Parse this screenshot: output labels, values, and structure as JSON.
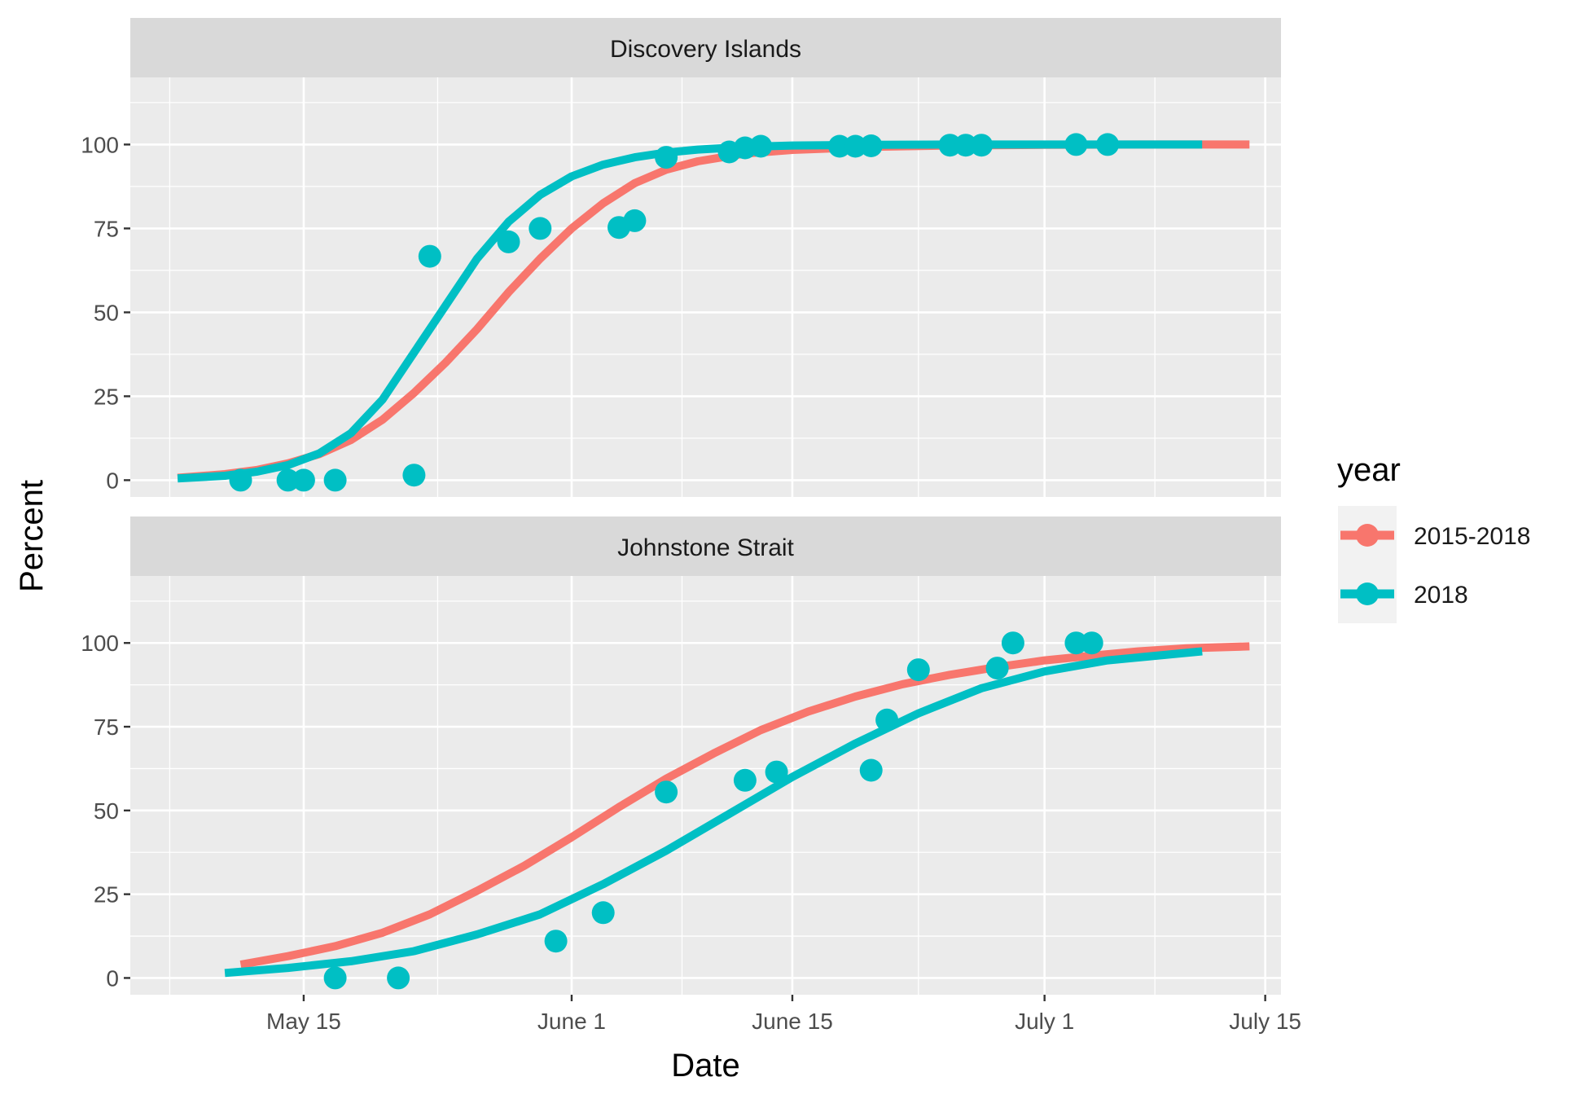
{
  "chart_data": {
    "type": "line",
    "x_unit": "date",
    "y_label": "Percent",
    "x_label": "Date",
    "x_range": [
      "2018-05-04",
      "2018-07-16"
    ],
    "y_range": [
      -5,
      120
    ],
    "y_ticks": [
      0,
      25,
      50,
      75,
      100
    ],
    "y_tick_labels": [
      "0",
      "25",
      "50",
      "75",
      "100"
    ],
    "x_ticks": [
      "2018-05-15",
      "2018-06-01",
      "2018-06-15",
      "2018-07-01",
      "2018-07-15"
    ],
    "x_tick_labels": [
      "May 15",
      "June 1",
      "June 15",
      "July 1",
      "July 15"
    ],
    "grid": true,
    "legend": {
      "title": "year",
      "position": "right",
      "entries": [
        {
          "label": "2015-2018",
          "color": "#F8766D"
        },
        {
          "label": "2018",
          "color": "#00BFC4"
        }
      ]
    },
    "panels": [
      {
        "title": "Discovery Islands",
        "series": [
          {
            "name": "2015-2018",
            "color": "#F8766D",
            "kind": "line",
            "x": [
              "2018-05-07",
              "2018-05-10",
              "2018-05-12",
              "2018-05-14",
              "2018-05-16",
              "2018-05-18",
              "2018-05-20",
              "2018-05-22",
              "2018-05-24",
              "2018-05-26",
              "2018-05-28",
              "2018-05-30",
              "2018-06-01",
              "2018-06-03",
              "2018-06-05",
              "2018-06-07",
              "2018-06-09",
              "2018-06-12",
              "2018-06-15",
              "2018-06-20",
              "2018-06-25",
              "2018-07-01",
              "2018-07-07",
              "2018-07-14"
            ],
            "y": [
              0.7,
              1.8,
              3.0,
              5.0,
              7.8,
              12.0,
              18.0,
              26.0,
              35.0,
              45.0,
              56.0,
              66.0,
              75.0,
              82.5,
              88.5,
              92.5,
              95.0,
              97.3,
              98.4,
              99.3,
              99.7,
              99.9,
              100,
              100
            ]
          },
          {
            "name": "2018",
            "color": "#00BFC4",
            "kind": "line",
            "x": [
              "2018-05-07",
              "2018-05-10",
              "2018-05-12",
              "2018-05-14",
              "2018-05-16",
              "2018-05-18",
              "2018-05-20",
              "2018-05-22",
              "2018-05-24",
              "2018-05-26",
              "2018-05-28",
              "2018-05-30",
              "2018-06-01",
              "2018-06-03",
              "2018-06-05",
              "2018-06-07",
              "2018-06-09",
              "2018-06-12",
              "2018-06-15",
              "2018-06-20",
              "2018-06-25",
              "2018-07-01",
              "2018-07-07",
              "2018-07-11"
            ],
            "y": [
              0.5,
              1.3,
              2.5,
              4.5,
              8.0,
              14.0,
              24.0,
              38.0,
              52.0,
              66.0,
              77.0,
              85.0,
              90.5,
              94.0,
              96.2,
              97.6,
              98.5,
              99.3,
              99.7,
              99.9,
              100,
              100,
              100,
              100
            ]
          },
          {
            "name": "2018",
            "color": "#00BFC4",
            "kind": "points",
            "x": [
              "2018-05-11",
              "2018-05-14",
              "2018-05-15",
              "2018-05-17",
              "2018-05-22",
              "2018-05-23",
              "2018-05-28",
              "2018-05-30",
              "2018-06-04",
              "2018-06-05",
              "2018-06-07",
              "2018-06-11",
              "2018-06-12",
              "2018-06-13",
              "2018-06-18",
              "2018-06-19",
              "2018-06-20",
              "2018-06-25",
              "2018-06-26",
              "2018-06-27",
              "2018-07-03",
              "2018-07-05"
            ],
            "y": [
              0,
              0,
              0,
              0,
              1.5,
              66.7,
              71,
              75,
              75.3,
              77.3,
              96.2,
              97.8,
              99,
              99.5,
              99.5,
              99.5,
              99.6,
              99.8,
              99.8,
              99.8,
              100,
              100
            ]
          }
        ]
      },
      {
        "title": "Johnstone Strait",
        "series": [
          {
            "name": "2015-2018",
            "color": "#F8766D",
            "kind": "line",
            "x": [
              "2018-05-11",
              "2018-05-14",
              "2018-05-17",
              "2018-05-20",
              "2018-05-23",
              "2018-05-26",
              "2018-05-29",
              "2018-06-01",
              "2018-06-04",
              "2018-06-07",
              "2018-06-10",
              "2018-06-13",
              "2018-06-16",
              "2018-06-19",
              "2018-06-22",
              "2018-06-25",
              "2018-06-28",
              "2018-07-01",
              "2018-07-04",
              "2018-07-07",
              "2018-07-10",
              "2018-07-14"
            ],
            "y": [
              4.0,
              6.5,
              9.5,
              13.5,
              19.0,
              26.0,
              33.5,
              42.0,
              51.0,
              59.5,
              67.0,
              74.0,
              79.5,
              84.0,
              87.7,
              90.5,
              92.8,
              94.8,
              96.2,
              97.5,
              98.4,
              99.0
            ]
          },
          {
            "name": "2018",
            "color": "#00BFC4",
            "kind": "line",
            "x": [
              "2018-05-10",
              "2018-05-14",
              "2018-05-18",
              "2018-05-22",
              "2018-05-26",
              "2018-05-30",
              "2018-06-03",
              "2018-06-07",
              "2018-06-11",
              "2018-06-15",
              "2018-06-19",
              "2018-06-23",
              "2018-06-27",
              "2018-07-01",
              "2018-07-05",
              "2018-07-11"
            ],
            "y": [
              1.5,
              3.0,
              5.0,
              8.0,
              13.0,
              19.0,
              28.0,
              38.0,
              49.0,
              60.0,
              70.0,
              79.0,
              86.5,
              91.5,
              94.8,
              97.5
            ]
          },
          {
            "name": "2018",
            "color": "#00BFC4",
            "kind": "points",
            "x": [
              "2018-05-17",
              "2018-05-21",
              "2018-05-31",
              "2018-06-03",
              "2018-06-07",
              "2018-06-12",
              "2018-06-14",
              "2018-06-20",
              "2018-06-21",
              "2018-06-23",
              "2018-06-28",
              "2018-06-29",
              "2018-07-03",
              "2018-07-04"
            ],
            "y": [
              0,
              0,
              11,
              19.5,
              55.5,
              59,
              61.5,
              62,
              77,
              92,
              92.5,
              100,
              100,
              100
            ]
          }
        ]
      }
    ]
  }
}
